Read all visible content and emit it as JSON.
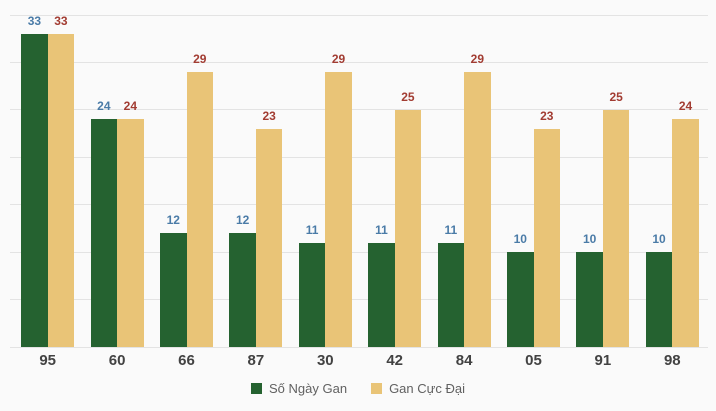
{
  "chart_data": {
    "type": "bar",
    "title": "",
    "xlabel": "",
    "ylabel": "",
    "categories": [
      "95",
      "60",
      "66",
      "87",
      "30",
      "42",
      "84",
      "05",
      "91",
      "98"
    ],
    "series": [
      {
        "name": "Số Ngày Gan",
        "color": "#256230",
        "label_color": "#4a7ba7",
        "values": [
          33,
          24,
          12,
          12,
          11,
          11,
          11,
          10,
          10,
          10
        ]
      },
      {
        "name": "Gan Cực Đại",
        "color": "#e9c477",
        "label_color": "#a23c32",
        "values": [
          33,
          24,
          29,
          23,
          29,
          25,
          29,
          23,
          25,
          24
        ]
      }
    ],
    "ylim": [
      0,
      35
    ],
    "grid_step": 5,
    "grid": true,
    "y_axis_labels_visible": false,
    "legend_position": "bottom"
  },
  "colors": {
    "background": "#fafafa",
    "gridline": "#e3e3e3",
    "category_label": "#424242",
    "legend_text": "#616161"
  }
}
